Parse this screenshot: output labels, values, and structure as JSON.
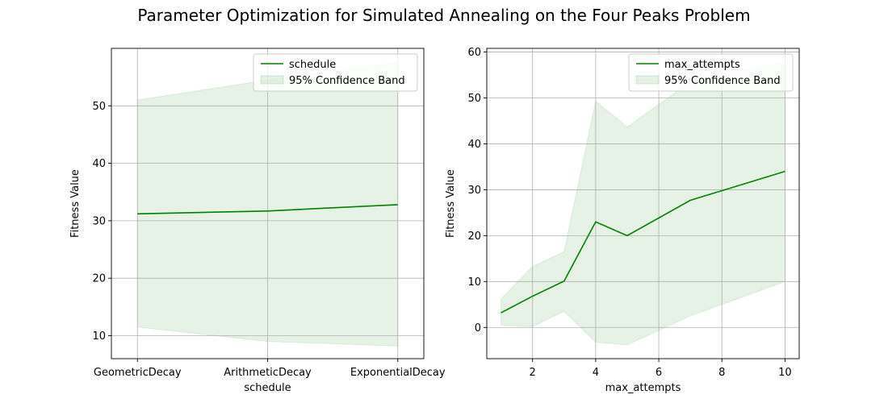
{
  "figure": {
    "title": "Parameter Optimization for Simulated Annealing on the Four Peaks Problem"
  },
  "colors": {
    "line": "#008000",
    "band_fill": "#008000",
    "grid": "#b0b0b0",
    "axis": "#000000"
  },
  "chart_data": [
    {
      "type": "line",
      "xtype": "categorical",
      "categories": [
        "GeometricDecay",
        "ArithmeticDecay",
        "ExponentialDecay"
      ],
      "series": [
        {
          "name": "schedule",
          "values": [
            31.2,
            31.7,
            32.8
          ],
          "band_name": "95% Confidence Band",
          "band_lower": [
            11.5,
            9.0,
            8.2
          ],
          "band_upper": [
            51.0,
            54.5,
            57.5
          ]
        }
      ],
      "xlabel": "schedule",
      "ylabel": "Fitness Value",
      "ylim": [
        6.0,
        60.0
      ],
      "yticks": [
        10,
        20,
        30,
        40,
        50
      ],
      "grid": true,
      "legend": "upper right"
    },
    {
      "type": "line",
      "xtype": "numeric",
      "x": [
        1,
        2,
        3,
        4,
        5,
        7,
        10
      ],
      "series": [
        {
          "name": "max_attempts",
          "values": [
            3.2,
            6.8,
            10.1,
            23.0,
            20.0,
            27.7,
            34.0
          ],
          "band_name": "95% Confidence Band",
          "band_lower": [
            0.5,
            0.2,
            3.5,
            -3.2,
            -3.8,
            2.5,
            10.0
          ],
          "band_upper": [
            6.2,
            13.3,
            16.5,
            49.3,
            43.7,
            53.5,
            57.8
          ]
        }
      ],
      "xlabel": "max_attempts",
      "ylabel": "Fitness Value",
      "xlim": [
        0.55,
        10.45
      ],
      "ylim": [
        -6.8,
        60.8
      ],
      "xticks": [
        2,
        4,
        6,
        8,
        10
      ],
      "yticks": [
        0,
        10,
        20,
        30,
        40,
        50,
        60
      ],
      "grid": true,
      "legend": "upper right"
    }
  ]
}
